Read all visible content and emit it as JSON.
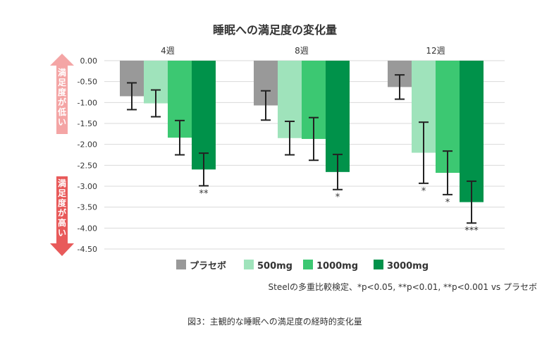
{
  "chart_data": {
    "type": "bar",
    "title": "睡眠への満足度の変化量",
    "categories": [
      "4週",
      "8週",
      "12週"
    ],
    "series": [
      {
        "name": "プラセボ",
        "color": "#999999",
        "values": [
          -0.85,
          -1.07,
          -0.63
        ],
        "error": [
          0.32,
          0.35,
          0.29
        ],
        "sig": [
          "",
          "",
          ""
        ]
      },
      {
        "name": "500mg",
        "color": "#9fe3bb",
        "values": [
          -1.02,
          -1.85,
          -2.2
        ],
        "error": [
          0.32,
          0.4,
          0.73
        ],
        "sig": [
          "",
          "",
          "*"
        ]
      },
      {
        "name": "1000mg",
        "color": "#3cc872",
        "values": [
          -1.84,
          -1.87,
          -2.68
        ],
        "error": [
          0.41,
          0.51,
          0.52
        ],
        "sig": [
          "",
          "",
          "*"
        ]
      },
      {
        "name": "3000mg",
        "color": "#00924a",
        "values": [
          -2.6,
          -2.66,
          -3.38
        ],
        "error": [
          0.39,
          0.42,
          0.5
        ],
        "sig": [
          "**",
          "*",
          "***"
        ]
      }
    ],
    "ylim": [
      -4.5,
      0
    ],
    "yticks": [
      "0.00",
      "-0.50",
      "-1.00",
      "-1.50",
      "-2.00",
      "-2.50",
      "-3.00",
      "-3.50",
      "-4.00",
      "-4.50"
    ],
    "grid": true,
    "legend_position": "bottom"
  },
  "side_labels": {
    "low": "満足度が低い",
    "low_color": "#f4a5a5",
    "high": "満足度が高い",
    "high_color": "#e85a5a"
  },
  "footnote": "Steelの多重比較検定、*p<0.05, **p<0.01, **p<0.001 vs プラセボ",
  "caption": "図3：主観的な睡眠への満足度の経時的変化量"
}
